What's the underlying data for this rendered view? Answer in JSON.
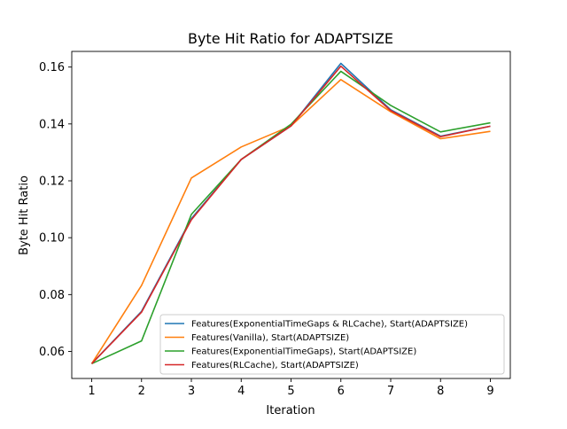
{
  "chart_data": {
    "type": "line",
    "title": "Byte Hit Ratio for ADAPTSIZE",
    "xlabel": "Iteration",
    "ylabel": "Byte Hit Ratio",
    "x": [
      1,
      2,
      3,
      4,
      5,
      6,
      7,
      8,
      9
    ],
    "xlim": [
      0.6,
      9.4
    ],
    "ylim": [
      0.0505,
      0.1655
    ],
    "xticks": [
      1,
      2,
      3,
      4,
      5,
      6,
      7,
      8,
      9
    ],
    "yticks": [
      0.06,
      0.08,
      0.1,
      0.12,
      0.14,
      0.16
    ],
    "ytick_labels": [
      "0.06",
      "0.08",
      "0.10",
      "0.12",
      "0.14",
      "0.16"
    ],
    "grid": false,
    "legend_position": "lower-right",
    "series": [
      {
        "name": "Features(ExponentialTimeGaps & RLCache), Start(ADAPTSIZE)",
        "color": "#1f77b4",
        "values": [
          0.0557,
          0.0741,
          0.1067,
          0.1275,
          0.1393,
          0.1613,
          0.145,
          0.1357,
          0.1392
        ]
      },
      {
        "name": "Features(Vanilla), Start(ADAPTSIZE)",
        "color": "#ff7f0e",
        "values": [
          0.0557,
          0.0832,
          0.121,
          0.1319,
          0.1393,
          0.1556,
          0.1443,
          0.1348,
          0.1374
        ]
      },
      {
        "name": "Features(ExponentialTimeGaps), Start(ADAPTSIZE)",
        "color": "#2ca02c",
        "values": [
          0.0557,
          0.0637,
          0.1082,
          0.1275,
          0.1399,
          0.1585,
          0.1465,
          0.1372,
          0.1404
        ]
      },
      {
        "name": "Features(RLCache), Start(ADAPTSIZE)",
        "color": "#d62728",
        "values": [
          0.0557,
          0.0738,
          0.1063,
          0.1275,
          0.1393,
          0.1603,
          0.1447,
          0.1355,
          0.1392
        ]
      }
    ]
  }
}
